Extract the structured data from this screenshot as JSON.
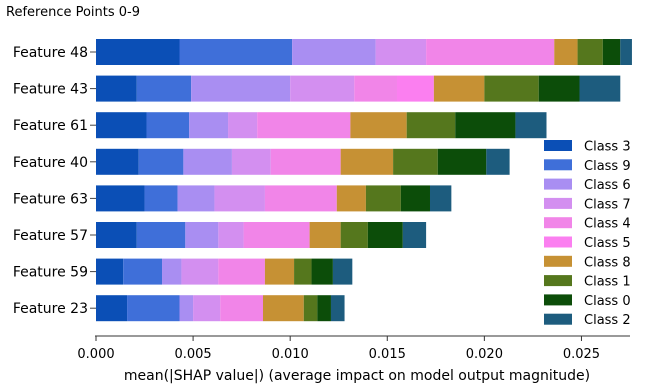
{
  "header": {
    "title": "Reference Points  0-9"
  },
  "chart_data": {
    "type": "bar",
    "stacked": true,
    "orientation": "horizontal",
    "title": "Reference Points  0-9",
    "xlabel": "mean(|SHAP value|) (average impact on model output magnitude)",
    "ylabel": "",
    "xlim": [
      0,
      0.0275
    ],
    "xticks": [
      0.0,
      0.005,
      0.01,
      0.015,
      0.02,
      0.025
    ],
    "xtick_labels": [
      "0.000",
      "0.005",
      "0.010",
      "0.015",
      "0.020",
      "0.025"
    ],
    "grid": false,
    "legend_position": "right",
    "categories": [
      "Feature 48",
      "Feature 43",
      "Feature 61",
      "Feature 40",
      "Feature 63",
      "Feature 57",
      "Feature 59",
      "Feature 23"
    ],
    "series": [
      {
        "name": "Class 3",
        "color": "#0b4fb6",
        "values": [
          0.0043,
          0.0021,
          0.0026,
          0.0022,
          0.0025,
          0.0021,
          0.0014,
          0.0016
        ]
      },
      {
        "name": "Class 9",
        "color": "#3f6fd9",
        "values": [
          0.0058,
          0.0028,
          0.0022,
          0.0023,
          0.0017,
          0.0025,
          0.002,
          0.0027
        ]
      },
      {
        "name": "Class 6",
        "color": "#a98ef2",
        "values": [
          0.0043,
          0.0051,
          0.002,
          0.0025,
          0.0019,
          0.0017,
          0.001,
          0.0007
        ]
      },
      {
        "name": "Class 7",
        "color": "#d38ff0",
        "values": [
          0.0026,
          0.0033,
          0.0015,
          0.002,
          0.0026,
          0.0013,
          0.0019,
          0.0014
        ]
      },
      {
        "name": "Class 4",
        "color": "#f185e8",
        "values": [
          0.0066,
          0.0022,
          0.0048,
          0.0036,
          0.0037,
          0.0034,
          0.0024,
          0.0022
        ]
      },
      {
        "name": "Class 5",
        "color": "#fb7ff0",
        "values": [
          0.0,
          0.0019,
          0.0,
          0.0,
          0.0,
          0.0,
          0.0,
          0.0
        ]
      },
      {
        "name": "Class 8",
        "color": "#c69134",
        "values": [
          0.0012,
          0.0026,
          0.0029,
          0.0027,
          0.0015,
          0.0016,
          0.0015,
          0.0021
        ]
      },
      {
        "name": "Class 1",
        "color": "#55771d",
        "values": [
          0.0013,
          0.0028,
          0.0025,
          0.0023,
          0.0018,
          0.0014,
          0.0009,
          0.0007
        ]
      },
      {
        "name": "Class 0",
        "color": "#0c4d09",
        "values": [
          0.0009,
          0.0021,
          0.0031,
          0.0025,
          0.0015,
          0.0018,
          0.0011,
          0.0007
        ]
      },
      {
        "name": "Class 2",
        "color": "#1d5c7e",
        "values": [
          0.0006,
          0.0021,
          0.0016,
          0.0012,
          0.0011,
          0.0012,
          0.001,
          0.0007
        ]
      }
    ]
  }
}
